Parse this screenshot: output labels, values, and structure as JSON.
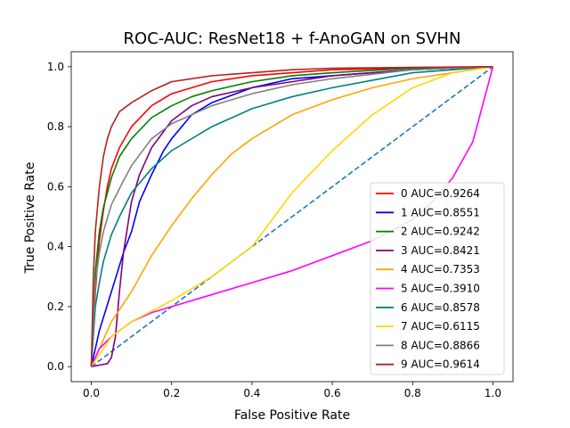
{
  "chart_data": {
    "type": "line",
    "title": "ROC-AUC: ResNet18 + f-AnoGAN on SVHN",
    "xlabel": "False Positive Rate",
    "ylabel": "True Positive Rate",
    "xlim": [
      -0.05,
      1.05
    ],
    "ylim": [
      -0.05,
      1.05
    ],
    "xticks": [
      0.0,
      0.2,
      0.4,
      0.6,
      0.8,
      1.0
    ],
    "yticks": [
      0.0,
      0.2,
      0.4,
      0.6,
      0.8,
      1.0
    ],
    "xtick_labels": [
      "0.0",
      "0.2",
      "0.4",
      "0.6",
      "0.8",
      "1.0"
    ],
    "ytick_labels": [
      "0.0",
      "0.2",
      "0.4",
      "0.6",
      "0.8",
      "1.0"
    ],
    "grid": false,
    "legend_position": "lower-right",
    "diagonal": {
      "color": "#1f77b4",
      "style": "dashed",
      "x": [
        0,
        1
      ],
      "y": [
        0,
        1
      ]
    },
    "series": [
      {
        "name": "0 AUC=0.9264",
        "color": "#ff0000",
        "x": [
          0,
          0.01,
          0.02,
          0.03,
          0.04,
          0.05,
          0.07,
          0.1,
          0.15,
          0.2,
          0.3,
          0.4,
          0.5,
          0.6,
          0.8,
          1.0
        ],
        "y": [
          0,
          0.25,
          0.42,
          0.52,
          0.6,
          0.66,
          0.73,
          0.8,
          0.87,
          0.91,
          0.95,
          0.97,
          0.98,
          0.99,
          0.995,
          1.0
        ]
      },
      {
        "name": "1 AUC=0.8551",
        "color": "#0000ff",
        "x": [
          0,
          0.02,
          0.05,
          0.08,
          0.1,
          0.12,
          0.15,
          0.18,
          0.2,
          0.25,
          0.3,
          0.4,
          0.5,
          0.6,
          0.8,
          1.0
        ],
        "y": [
          0,
          0.12,
          0.25,
          0.38,
          0.45,
          0.55,
          0.64,
          0.72,
          0.76,
          0.84,
          0.88,
          0.93,
          0.96,
          0.97,
          0.99,
          1.0
        ]
      },
      {
        "name": "2 AUC=0.9242",
        "color": "#008000",
        "x": [
          0,
          0.01,
          0.02,
          0.03,
          0.05,
          0.07,
          0.1,
          0.15,
          0.2,
          0.25,
          0.3,
          0.4,
          0.5,
          0.6,
          0.8,
          1.0
        ],
        "y": [
          0,
          0.32,
          0.45,
          0.53,
          0.63,
          0.7,
          0.76,
          0.83,
          0.87,
          0.9,
          0.92,
          0.95,
          0.97,
          0.98,
          0.995,
          1.0
        ]
      },
      {
        "name": "3 AUC=0.8421",
        "color": "#800080",
        "x": [
          0,
          0.02,
          0.04,
          0.05,
          0.06,
          0.07,
          0.08,
          0.1,
          0.12,
          0.15,
          0.2,
          0.25,
          0.3,
          0.4,
          0.5,
          0.6,
          0.8,
          1.0
        ],
        "y": [
          0,
          0.005,
          0.01,
          0.03,
          0.1,
          0.25,
          0.38,
          0.55,
          0.64,
          0.73,
          0.82,
          0.87,
          0.9,
          0.93,
          0.95,
          0.97,
          0.99,
          1.0
        ]
      },
      {
        "name": "4 AUC=0.7353",
        "color": "#ffa500",
        "x": [
          0,
          0.05,
          0.1,
          0.15,
          0.2,
          0.25,
          0.3,
          0.35,
          0.4,
          0.5,
          0.6,
          0.7,
          0.8,
          0.9,
          1.0
        ],
        "y": [
          0,
          0.15,
          0.25,
          0.37,
          0.47,
          0.56,
          0.64,
          0.71,
          0.76,
          0.84,
          0.89,
          0.93,
          0.96,
          0.98,
          1.0
        ]
      },
      {
        "name": "5 AUC=0.3910",
        "color": "#ff00ff",
        "x": [
          0,
          0.02,
          0.05,
          0.1,
          0.15,
          0.2,
          0.3,
          0.4,
          0.5,
          0.6,
          0.7,
          0.8,
          0.85,
          0.9,
          0.95,
          1.0
        ],
        "y": [
          0,
          0.06,
          0.1,
          0.15,
          0.18,
          0.2,
          0.24,
          0.28,
          0.32,
          0.37,
          0.42,
          0.49,
          0.55,
          0.63,
          0.75,
          1.0
        ]
      },
      {
        "name": "6 AUC=0.8578",
        "color": "#008080",
        "x": [
          0,
          0.01,
          0.02,
          0.03,
          0.05,
          0.07,
          0.1,
          0.15,
          0.2,
          0.3,
          0.4,
          0.5,
          0.6,
          0.8,
          1.0
        ],
        "y": [
          0,
          0.2,
          0.28,
          0.35,
          0.44,
          0.5,
          0.58,
          0.66,
          0.72,
          0.8,
          0.86,
          0.9,
          0.93,
          0.98,
          1.0
        ]
      },
      {
        "name": "7 AUC=0.6115",
        "color": "#ffd700",
        "x": [
          0,
          0.05,
          0.1,
          0.2,
          0.3,
          0.4,
          0.45,
          0.5,
          0.6,
          0.7,
          0.8,
          0.9,
          1.0
        ],
        "y": [
          0,
          0.1,
          0.15,
          0.22,
          0.3,
          0.4,
          0.49,
          0.58,
          0.72,
          0.84,
          0.93,
          0.98,
          1.0
        ]
      },
      {
        "name": "8 AUC=0.8866",
        "color": "#808080",
        "x": [
          0,
          0.01,
          0.02,
          0.03,
          0.05,
          0.08,
          0.1,
          0.15,
          0.2,
          0.3,
          0.4,
          0.5,
          0.6,
          0.8,
          1.0
        ],
        "y": [
          0,
          0.28,
          0.38,
          0.45,
          0.54,
          0.62,
          0.67,
          0.76,
          0.81,
          0.87,
          0.91,
          0.94,
          0.96,
          0.99,
          1.0
        ]
      },
      {
        "name": "9 AUC=0.9614",
        "color": "#b22222",
        "x": [
          0,
          0.005,
          0.01,
          0.02,
          0.03,
          0.04,
          0.05,
          0.07,
          0.1,
          0.15,
          0.2,
          0.3,
          0.4,
          0.5,
          0.6,
          0.8,
          1.0
        ],
        "y": [
          0,
          0.3,
          0.45,
          0.6,
          0.7,
          0.76,
          0.8,
          0.85,
          0.88,
          0.92,
          0.95,
          0.97,
          0.98,
          0.99,
          0.995,
          0.998,
          1.0
        ]
      }
    ]
  }
}
